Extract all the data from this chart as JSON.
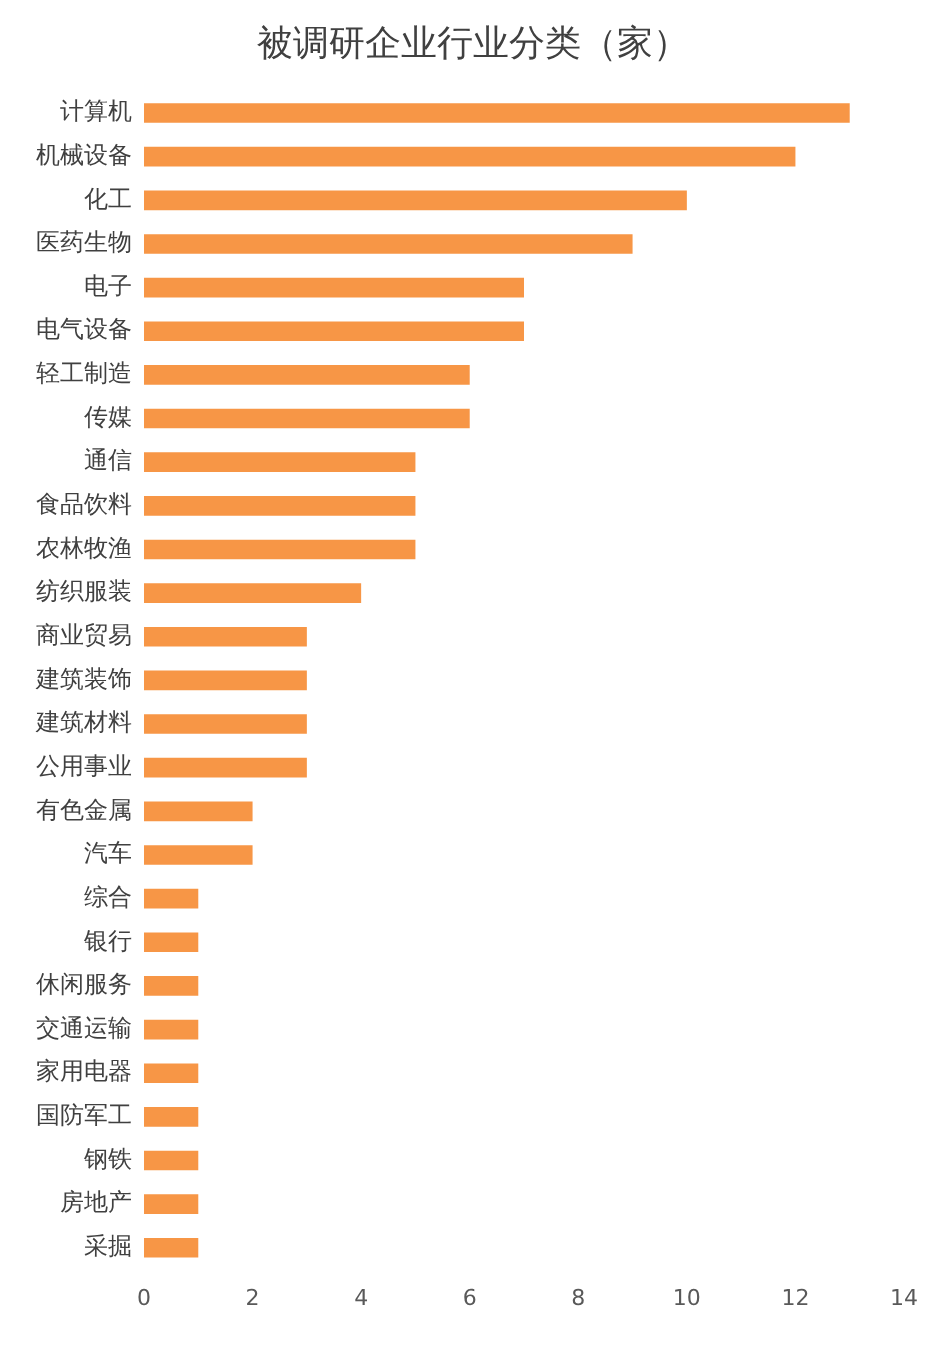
{
  "chart_data": {
    "type": "bar",
    "orientation": "horizontal",
    "title": "被调研企业行业分类（家）",
    "categories": [
      "计算机",
      "机械设备",
      "化工",
      "医药生物",
      "电子",
      "电气设备",
      "轻工制造",
      "传媒",
      "通信",
      "食品饮料",
      "农林牧渔",
      "纺织服装",
      "商业贸易",
      "建筑装饰",
      "建筑材料",
      "公用事业",
      "有色金属",
      "汽车",
      "综合",
      "银行",
      "休闲服务",
      "交通运输",
      "家用电器",
      "国防军工",
      "钢铁",
      "房地产",
      "采掘"
    ],
    "values": [
      13,
      12,
      10,
      9,
      7,
      7,
      6,
      6,
      5,
      5,
      5,
      4,
      3,
      3,
      3,
      3,
      2,
      2,
      1,
      1,
      1,
      1,
      1,
      1,
      1,
      1,
      1
    ],
    "color": "#f79646",
    "xlim": [
      0,
      14
    ],
    "xticks": [
      0,
      2,
      4,
      6,
      8,
      10,
      12,
      14
    ],
    "grid": false,
    "legend": false
  }
}
